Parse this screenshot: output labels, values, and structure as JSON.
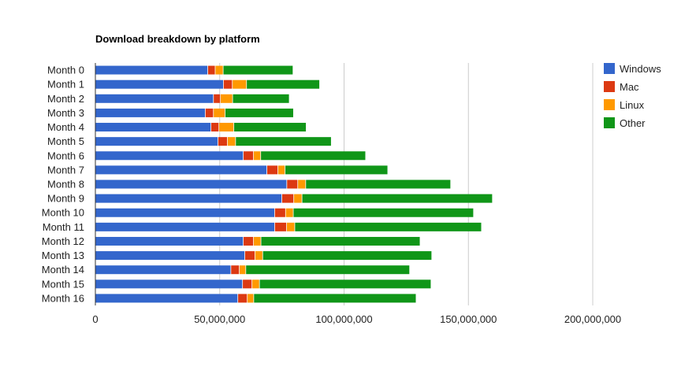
{
  "chart_data": {
    "type": "bar",
    "orientation": "horizontal",
    "stacked": true,
    "title": "Download breakdown by platform",
    "xlabel": "",
    "ylabel": "",
    "xlim": [
      0,
      200000000
    ],
    "x_ticks": [
      "0",
      "50,000,000",
      "100,000,000",
      "150,000,000",
      "200,000,000"
    ],
    "grid": true,
    "legend_position": "right",
    "categories": [
      "Month 0",
      "Month 1",
      "Month 2",
      "Month 3",
      "Month 4",
      "Month 5",
      "Month 6",
      "Month 7",
      "Month 8",
      "Month 9",
      "Month 10",
      "Month 11",
      "Month 12",
      "Month 13",
      "Month 14",
      "Month 15",
      "Month 16"
    ],
    "series": [
      {
        "name": "Windows",
        "color": "#3366cc",
        "values": [
          45300000,
          51600000,
          47600000,
          44300000,
          46600000,
          49400000,
          59600000,
          69100000,
          77100000,
          75100000,
          72200000,
          72200000,
          59600000,
          60200000,
          54600000,
          59300000,
          57400000
        ]
      },
      {
        "name": "Mac",
        "color": "#dc3912",
        "values": [
          3000000,
          3600000,
          2800000,
          3300000,
          3200000,
          3800000,
          4100000,
          4400000,
          4400000,
          4800000,
          4400000,
          4800000,
          4100000,
          4100000,
          3400000,
          3800000,
          3800000
        ]
      },
      {
        "name": "Linux",
        "color": "#ff9900",
        "values": [
          3200000,
          5700000,
          4900000,
          4700000,
          6000000,
          3300000,
          2900000,
          2900000,
          3200000,
          3300000,
          3100000,
          3300000,
          3000000,
          3100000,
          2600000,
          3000000,
          2600000
        ]
      },
      {
        "name": "Other",
        "color": "#109618",
        "values": [
          28100000,
          29400000,
          22800000,
          27500000,
          29100000,
          38500000,
          42200000,
          41300000,
          58300000,
          76600000,
          72500000,
          75100000,
          64000000,
          68000000,
          65900000,
          69000000,
          65300000
        ]
      }
    ]
  }
}
